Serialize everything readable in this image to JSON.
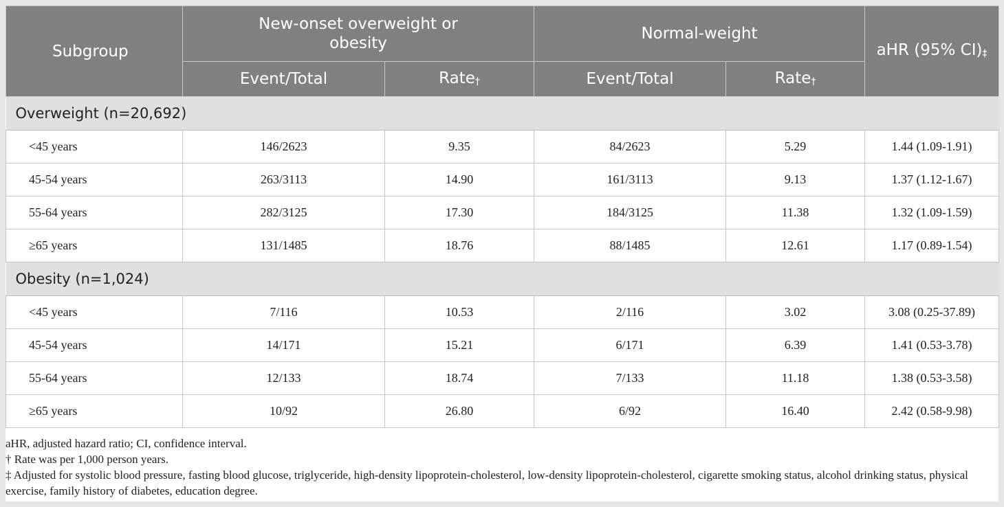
{
  "table": {
    "header": {
      "subgroup": "Subgroup",
      "new_onset": "New-onset overweight or obesity",
      "normal_weight": "Normal-weight",
      "ahr": "aHR (95% CI)",
      "ahr_mark": "‡",
      "event_total": "Event/Total",
      "rate": "Rate",
      "rate_mark": "†"
    },
    "groups": [
      {
        "title": "Overweight (n=20,692)",
        "rows": [
          {
            "label": "<45 years",
            "new_event": "146/2623",
            "new_rate": "9.35",
            "norm_event": "84/2623",
            "norm_rate": "5.29",
            "ahr": "1.44 (1.09-1.91)"
          },
          {
            "label": "45-54 years",
            "new_event": "263/3113",
            "new_rate": "14.90",
            "norm_event": "161/3113",
            "norm_rate": "9.13",
            "ahr": "1.37 (1.12-1.67)"
          },
          {
            "label": "55-64 years",
            "new_event": "282/3125",
            "new_rate": "17.30",
            "norm_event": "184/3125",
            "norm_rate": "11.38",
            "ahr": "1.32 (1.09-1.59)"
          },
          {
            "label": "≥65 years",
            "new_event": "131/1485",
            "new_rate": "18.76",
            "norm_event": "88/1485",
            "norm_rate": "12.61",
            "ahr": "1.17 (0.89-1.54)"
          }
        ]
      },
      {
        "title": "Obesity (n=1,024)",
        "rows": [
          {
            "label": "<45 years",
            "new_event": "7/116",
            "new_rate": "10.53",
            "norm_event": "2/116",
            "norm_rate": "3.02",
            "ahr": "3.08 (0.25-37.89)"
          },
          {
            "label": "45-54 years",
            "new_event": "14/171",
            "new_rate": "15.21",
            "norm_event": "6/171",
            "norm_rate": "6.39",
            "ahr": "1.41 (0.53-3.78)"
          },
          {
            "label": "55-64 years",
            "new_event": "12/133",
            "new_rate": "18.74",
            "norm_event": "7/133",
            "norm_rate": "11.18",
            "ahr": "1.38 (0.53-3.58)"
          },
          {
            "label": "≥65 years",
            "new_event": "10/92",
            "new_rate": "26.80",
            "norm_event": "6/92",
            "norm_rate": "16.40",
            "ahr": "2.42 (0.58-9.98)"
          }
        ]
      }
    ]
  },
  "footnotes": {
    "abbrev": "aHR, adjusted hazard ratio; CI, confidence interval.",
    "rate_note": "† Rate was per 1,000 person years.",
    "adjust_note": "‡ Adjusted for systolic blood pressure, fasting blood glucose, triglyceride, high-density lipoprotein-cholesterol, low-density lipoprotein-cholesterol, cigarette smoking status, alcohol drinking status, physical exercise, family history of diabetes, education degree."
  },
  "colors": {
    "header_bg": "#808080",
    "group_bg": "#e0e0e0",
    "frame_bg": "#e6e6e6"
  }
}
